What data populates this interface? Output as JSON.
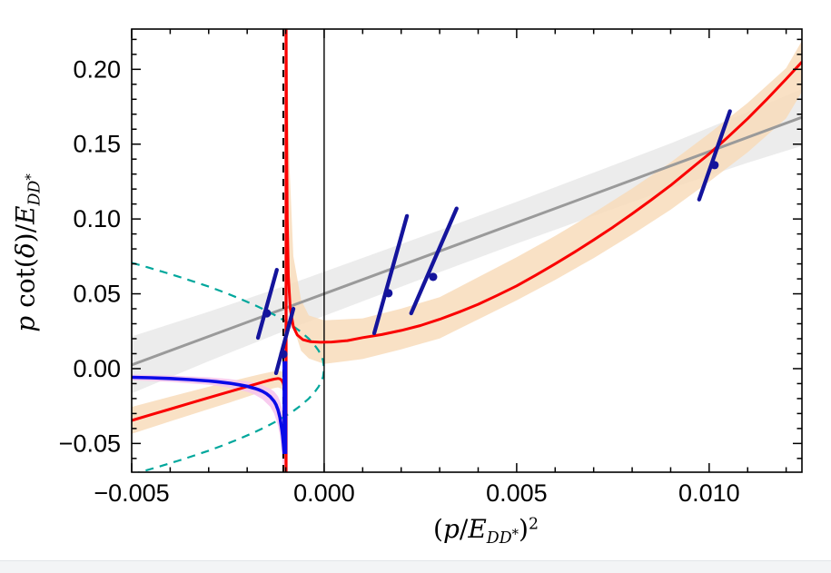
{
  "window": {
    "bg": "#ffffff",
    "bottom_strip": {
      "color": "#f3f4f6",
      "border": "#e3e5e9"
    }
  },
  "chart_data": {
    "type": "line",
    "title": "",
    "xlabel": "(p/E_{DD^{*}})^{2}",
    "ylabel": "p cot(δ)/E_{DD^{*}}",
    "xlim": [
      -0.005,
      0.01241
    ],
    "ylim": [
      -0.0692,
      0.2269
    ],
    "grid": false,
    "legend": null,
    "frame_color": "#000000",
    "x_major_ticks": [
      {
        "v": -0.005,
        "label": "−0.005"
      },
      {
        "v": 0.0,
        "label": "0.000"
      },
      {
        "v": 0.005,
        "label": "0.005"
      },
      {
        "v": 0.01,
        "label": "0.010"
      }
    ],
    "y_major_ticks": [
      {
        "v": -0.05,
        "label": "−0.05"
      },
      {
        "v": 0.0,
        "label": "0.00"
      },
      {
        "v": 0.05,
        "label": "0.05"
      },
      {
        "v": 0.1,
        "label": "0.10"
      },
      {
        "v": 0.15,
        "label": "0.15"
      },
      {
        "v": 0.2,
        "label": "0.20"
      }
    ],
    "x_minor_step": 0.001,
    "y_minor_step": 0.01,
    "bands": [
      {
        "name": "linear-fit-band",
        "color": "#e9e9e9",
        "opacity": 0.88,
        "points": [
          [
            -0.005,
            -0.0165,
            0.0215
          ],
          [
            -0.003,
            0.005,
            0.038
          ],
          [
            -0.001,
            0.0255,
            0.0555
          ],
          [
            0.001,
            0.045,
            0.074
          ],
          [
            0.003,
            0.0645,
            0.0925
          ],
          [
            0.005,
            0.0835,
            0.1115
          ],
          [
            0.007,
            0.102,
            0.131
          ],
          [
            0.009,
            0.1205,
            0.1505
          ],
          [
            0.011,
            0.1375,
            0.1715
          ],
          [
            0.01241,
            0.1489,
            0.1869
          ]
        ]
      },
      {
        "name": "lhc-fit-band-left",
        "color": "#f8dcbb",
        "opacity": 0.85,
        "points": [
          [
            -0.005,
            -0.0436,
            -0.0256
          ],
          [
            -0.004,
            -0.0352,
            -0.0188
          ],
          [
            -0.003,
            -0.027,
            -0.0121
          ],
          [
            -0.0025,
            -0.023,
            -0.009
          ],
          [
            -0.002,
            -0.0188,
            -0.0058
          ],
          [
            -0.0017,
            -0.0163,
            -0.004
          ],
          [
            -0.0015,
            -0.0146,
            -0.0028
          ],
          [
            -0.0013,
            -0.013,
            -0.0018
          ],
          [
            -0.0012,
            -0.0125,
            -0.0015
          ],
          [
            -0.0011,
            -0.0135,
            -0.0018
          ],
          [
            -0.00105,
            -0.0165,
            -0.003
          ],
          [
            -0.00101,
            -0.035,
            -0.006
          ],
          [
            -0.00099,
            -0.0692,
            -0.012
          ]
        ]
      },
      {
        "name": "lhc-fit-band-right",
        "color": "#f8dcbb",
        "opacity": 0.85,
        "points": [
          [
            -0.00097,
            0.1,
            0.2269
          ],
          [
            -0.0009,
            0.05,
            0.135
          ],
          [
            -0.0008,
            0.028,
            0.075
          ],
          [
            -0.0006,
            0.012,
            0.046
          ],
          [
            -0.0004,
            0.0068,
            0.0355
          ],
          [
            0,
            0.0031,
            0.0323
          ],
          [
            0.001,
            0.0064,
            0.0336
          ],
          [
            0.002,
            0.0129,
            0.0401
          ],
          [
            0.003,
            0.0202,
            0.0478
          ],
          [
            0.004,
            0.0329,
            0.0611
          ],
          [
            0.005,
            0.0456,
            0.0744
          ],
          [
            0.006,
            0.0593,
            0.0887
          ],
          [
            0.007,
            0.0739,
            0.1041
          ],
          [
            0.008,
            0.0896,
            0.1204
          ],
          [
            0.009,
            0.1062,
            0.1378
          ],
          [
            0.01,
            0.1249,
            0.1571
          ],
          [
            0.011,
            0.1445,
            0.1775
          ],
          [
            0.012,
            0.1672,
            0.2008
          ],
          [
            0.01241,
            0.185,
            0.219
          ]
        ]
      },
      {
        "name": "bound-state-band",
        "color": "#f7c3ec",
        "opacity": 0.85,
        "points": [
          [
            -0.005,
            -0.0078,
            -0.004
          ],
          [
            -0.004,
            -0.0088,
            -0.0046
          ],
          [
            -0.003,
            -0.0108,
            -0.0058
          ],
          [
            -0.0025,
            -0.0125,
            -0.0068
          ],
          [
            -0.002,
            -0.0155,
            -0.0085
          ],
          [
            -0.0018,
            -0.0175,
            -0.0096
          ],
          [
            -0.0016,
            -0.0205,
            -0.0112
          ],
          [
            -0.0014,
            -0.0255,
            -0.0135
          ],
          [
            -0.0013,
            -0.03,
            -0.0152
          ],
          [
            -0.0012,
            -0.038,
            -0.0185
          ],
          [
            -0.00115,
            -0.045,
            -0.0215
          ],
          [
            -0.0011,
            -0.056,
            -0.026
          ],
          [
            -0.00107,
            -0.065,
            -0.031
          ],
          [
            -0.00104,
            -0.0692,
            -0.037
          ]
        ]
      }
    ],
    "strokes": [
      {
        "name": "linear-ere-fit-line",
        "color": "#9a9a9a",
        "width": 3,
        "points": [
          [
            -0.005,
            0.0025
          ],
          [
            0.01241,
            0.1679
          ]
        ]
      },
      {
        "name": "virtual-state-condition-upper",
        "color": "#00a79c",
        "width": 2.2,
        "dash": "9 7",
        "points": [
          [
            -0.005,
            0.0707
          ],
          [
            -0.0046,
            0.0678
          ],
          [
            -0.0042,
            0.0648
          ],
          [
            -0.0038,
            0.0616
          ],
          [
            -0.0034,
            0.0583
          ],
          [
            -0.003,
            0.0548
          ],
          [
            -0.0026,
            0.051
          ],
          [
            -0.0022,
            0.0469
          ],
          [
            -0.0018,
            0.0424
          ],
          [
            -0.0015,
            0.0387
          ],
          [
            -0.0012,
            0.0346
          ],
          [
            -0.001,
            0.0316
          ],
          [
            -0.0008,
            0.0283
          ],
          [
            -0.0006,
            0.0245
          ],
          [
            -0.0004,
            0.02
          ],
          [
            -0.00025,
            0.0158
          ],
          [
            -0.00015,
            0.0122
          ],
          [
            -8e-05,
            0.0089
          ],
          [
            -3e-05,
            0.0055
          ],
          [
            0,
            0
          ]
        ]
      },
      {
        "name": "bound-state-condition-lower",
        "color": "#00a79c",
        "width": 2.2,
        "dash": "9 7",
        "points": [
          [
            -0.005,
            -0.0707
          ],
          [
            -0.0046,
            -0.0678
          ],
          [
            -0.0042,
            -0.0648
          ],
          [
            -0.0038,
            -0.0616
          ],
          [
            -0.0034,
            -0.0583
          ],
          [
            -0.003,
            -0.0548
          ],
          [
            -0.0026,
            -0.051
          ],
          [
            -0.0022,
            -0.0469
          ],
          [
            -0.0018,
            -0.0424
          ],
          [
            -0.0015,
            -0.0387
          ],
          [
            -0.0012,
            -0.0346
          ],
          [
            -0.001,
            -0.0316
          ],
          [
            -0.0008,
            -0.0283
          ],
          [
            -0.0006,
            -0.0245
          ],
          [
            -0.0004,
            -0.02
          ],
          [
            -0.00025,
            -0.0158
          ],
          [
            -0.00015,
            -0.0122
          ],
          [
            -8e-05,
            -0.0089
          ],
          [
            -3e-05,
            -0.0055
          ],
          [
            0,
            0
          ]
        ]
      },
      {
        "name": "threshold-vline",
        "color": "#000000",
        "width": 1.4,
        "points": [
          [
            0,
            -0.0692
          ],
          [
            0,
            0.2269
          ]
        ]
      },
      {
        "name": "left-hand-cut-vline",
        "color": "#000000",
        "width": 2,
        "dash": "8 7",
        "points": [
          [
            -0.00106,
            -0.0692
          ],
          [
            -0.00106,
            0.2269
          ]
        ]
      },
      {
        "name": "lhc-fit-left-branch",
        "color": "#fa0000",
        "width": 3,
        "points": [
          [
            -0.005,
            -0.0346
          ],
          [
            -0.0045,
            -0.0308
          ],
          [
            -0.004,
            -0.027
          ],
          [
            -0.0035,
            -0.0232
          ],
          [
            -0.003,
            -0.0194
          ],
          [
            -0.0025,
            -0.0157
          ],
          [
            -0.002,
            -0.012
          ],
          [
            -0.0018,
            -0.0105
          ],
          [
            -0.0016,
            -0.009
          ],
          [
            -0.0014,
            -0.0076
          ],
          [
            -0.0013,
            -0.007
          ],
          [
            -0.0012,
            -0.0066
          ],
          [
            -0.00115,
            -0.0068
          ],
          [
            -0.0011,
            -0.0078
          ],
          [
            -0.00106,
            -0.01
          ],
          [
            -0.00103,
            -0.0145
          ],
          [
            -0.00101,
            -0.025
          ],
          [
            -0.001,
            -0.04
          ],
          [
            -0.00099,
            -0.0692
          ]
        ]
      },
      {
        "name": "lhc-fit-right-branch",
        "color": "#fa0000",
        "width": 3,
        "points": [
          [
            -0.00099,
            0.2269
          ],
          [
            -0.00098,
            0.17
          ],
          [
            -0.00096,
            0.1
          ],
          [
            -0.00093,
            0.062
          ],
          [
            -0.00088,
            0.04
          ],
          [
            -0.0008,
            0.028
          ],
          [
            -0.0007,
            0.0225
          ],
          [
            -0.00055,
            0.0193
          ],
          [
            -0.00035,
            0.018
          ],
          [
            -0.0001,
            0.0176
          ],
          [
            0.0002,
            0.0178
          ],
          [
            0.0006,
            0.0187
          ],
          [
            0.001,
            0.0207
          ],
          [
            0.0015,
            0.0228
          ],
          [
            0.002,
            0.0255
          ],
          [
            0.0025,
            0.0288
          ],
          [
            0.003,
            0.033
          ],
          [
            0.0035,
            0.0378
          ],
          [
            0.004,
            0.043
          ],
          [
            0.0045,
            0.049
          ],
          [
            0.005,
            0.0553
          ],
          [
            0.0055,
            0.0625
          ],
          [
            0.006,
            0.07
          ],
          [
            0.0065,
            0.0778
          ],
          [
            0.007,
            0.086
          ],
          [
            0.0075,
            0.0945
          ],
          [
            0.008,
            0.1035
          ],
          [
            0.0085,
            0.1128
          ],
          [
            0.009,
            0.1225
          ],
          [
            0.0095,
            0.133
          ],
          [
            0.01,
            0.1435
          ],
          [
            0.0105,
            0.155
          ],
          [
            0.011,
            0.167
          ],
          [
            0.0115,
            0.18
          ],
          [
            0.012,
            0.1935
          ],
          [
            0.01241,
            0.205
          ]
        ]
      },
      {
        "name": "lhc-asymptote-vline",
        "color": "#fa0000",
        "width": 3.2,
        "points": [
          [
            -0.00099,
            -0.0692
          ],
          [
            -0.00099,
            0.2269
          ]
        ]
      },
      {
        "name": "bound-state-curve",
        "color": "#0a0ae8",
        "width": 3.6,
        "points": [
          [
            -0.005,
            -0.0058
          ],
          [
            -0.0045,
            -0.0061
          ],
          [
            -0.004,
            -0.0066
          ],
          [
            -0.0035,
            -0.0073
          ],
          [
            -0.003,
            -0.0082
          ],
          [
            -0.0028,
            -0.0087
          ],
          [
            -0.0026,
            -0.0093
          ],
          [
            -0.0024,
            -0.01
          ],
          [
            -0.0022,
            -0.0108
          ],
          [
            -0.002,
            -0.0118
          ],
          [
            -0.0019,
            -0.0125
          ],
          [
            -0.0018,
            -0.0132
          ],
          [
            -0.0017,
            -0.0141
          ],
          [
            -0.0016,
            -0.0152
          ],
          [
            -0.0015,
            -0.0167
          ],
          [
            -0.0014,
            -0.0188
          ],
          [
            -0.0013,
            -0.0218
          ],
          [
            -0.00125,
            -0.0242
          ],
          [
            -0.0012,
            -0.0275
          ],
          [
            -0.00115,
            -0.0325
          ],
          [
            -0.0011,
            -0.0405
          ],
          [
            -0.00108,
            -0.0448
          ],
          [
            -0.00106,
            -0.05
          ],
          [
            -0.00104,
            -0.057
          ]
        ]
      },
      {
        "name": "bound-state-vline",
        "color": "#0a0ae8",
        "width": 5.2,
        "points": [
          [
            -0.00102,
            0.005
          ],
          [
            -0.00102,
            -0.057
          ]
        ]
      }
    ],
    "levels": [
      {
        "name": "energy-level-1",
        "color": "#14149c",
        "segment": [
          [
            -0.00172,
            0.0206
          ],
          [
            -0.00123,
            0.066
          ]
        ],
        "point": [
          -0.00149,
          0.037
        ]
      },
      {
        "name": "energy-level-2",
        "color": "#14149c",
        "segment": [
          [
            -0.00125,
            -0.003
          ],
          [
            -0.0008,
            0.04
          ]
        ],
        "point": [
          -0.00106,
          0.0097
        ]
      },
      {
        "name": "energy-level-3",
        "color": "#14149c",
        "segment": [
          [
            0.0013,
            0.0237
          ],
          [
            0.00215,
            0.102
          ]
        ],
        "point": [
          0.00167,
          0.0504
        ]
      },
      {
        "name": "energy-level-4",
        "color": "#14149c",
        "segment": [
          [
            0.00226,
            0.037
          ],
          [
            0.00344,
            0.107
          ]
        ],
        "point": [
          0.00283,
          0.0613
        ]
      },
      {
        "name": "energy-level-5",
        "color": "#14149c",
        "segment": [
          [
            0.00974,
            0.113
          ],
          [
            0.01054,
            0.172
          ]
        ],
        "point": [
          0.01014,
          0.136
        ]
      }
    ]
  }
}
